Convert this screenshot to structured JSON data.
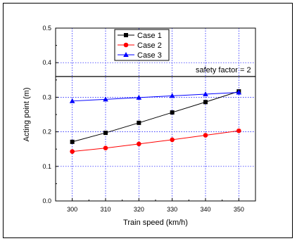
{
  "chart_data": {
    "type": "line",
    "xlabel": "Train speed (km/h)",
    "ylabel": "Acting point (m)",
    "x": [
      300,
      310,
      320,
      330,
      340,
      350
    ],
    "xlim": [
      295,
      355
    ],
    "ylim": [
      0.0,
      0.5
    ],
    "xticks": [
      "300",
      "310",
      "320",
      "330",
      "340",
      "350"
    ],
    "yticks": [
      "0.0",
      "0.1",
      "0.2",
      "0.3",
      "0.4",
      "0.5"
    ],
    "grid": true,
    "legend_position": "top-center",
    "series": [
      {
        "name": "Case 1",
        "color": "#000000",
        "marker": "square",
        "values": [
          0.171,
          0.197,
          0.226,
          0.256,
          0.286,
          0.317
        ]
      },
      {
        "name": "Case 2",
        "color": "#ff0000",
        "marker": "circle",
        "values": [
          0.143,
          0.153,
          0.165,
          0.177,
          0.19,
          0.203
        ]
      },
      {
        "name": "Case 3",
        "color": "#0000ff",
        "marker": "triangle",
        "values": [
          0.289,
          0.294,
          0.299,
          0.304,
          0.309,
          0.314
        ]
      }
    ],
    "reference_line": {
      "value": 0.36,
      "label": "safety factor = 2",
      "color": "#000000"
    }
  }
}
